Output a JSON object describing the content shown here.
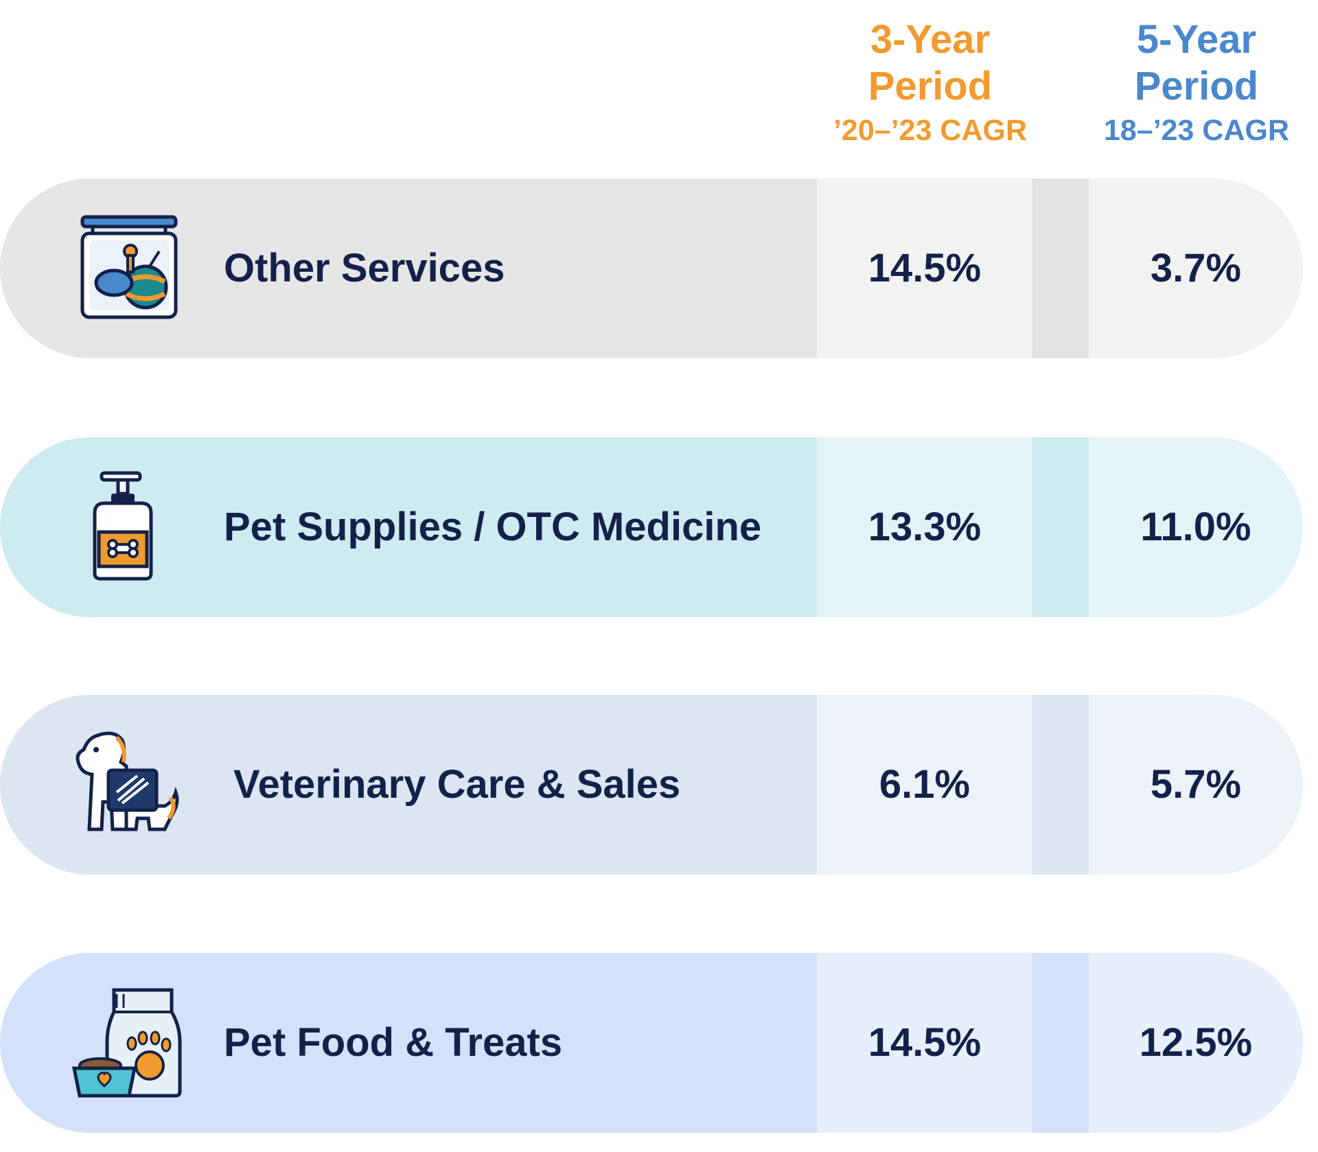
{
  "headers": {
    "three_year": {
      "line1": "3-Year",
      "line2": "Period",
      "sub": "’20–’23 CAGR"
    },
    "five_year": {
      "line1": "5-Year",
      "line2": "Period",
      "sub": "18–’23 CAGR"
    }
  },
  "colors": {
    "three_year_header": "#F29A2E",
    "five_year_header": "#4A88CC",
    "text": "#13214A"
  },
  "rows": [
    {
      "label": "Other Services",
      "three_year": "14.5%",
      "five_year": "3.7%",
      "icon": "pet-toy-sign-icon",
      "bg": "#E6E6E6",
      "band": "#F2F2F2",
      "gap": "#E3E3E3"
    },
    {
      "label": "Pet Supplies / OTC Medicine",
      "three_year": "13.3%",
      "five_year": "11.0%",
      "icon": "pet-shampoo-bottle-icon",
      "bg": "#CDEBF1",
      "band": "#E3F4F8",
      "gap": "#CDEBF1"
    },
    {
      "label": "Veterinary Care & Sales",
      "three_year": "6.1%",
      "five_year": "5.7%",
      "icon": "dog-xray-icon",
      "bg": "#DCE6F3",
      "band": "#EDF2F9",
      "gap": "#DCE6F3"
    },
    {
      "label": "Pet Food & Treats",
      "three_year": "14.5%",
      "five_year": "12.5%",
      "icon": "pet-food-bag-icon",
      "bg": "#D3E2FA",
      "band": "#E7EFFC",
      "gap": "#D3E2FA"
    }
  ]
}
